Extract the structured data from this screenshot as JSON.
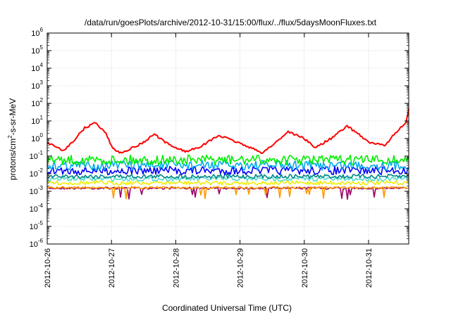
{
  "chart_data": {
    "type": "line",
    "title": "/data/run/goesPlots/archive/2012-10-31/15:00/flux/../flux/5daysMoonFluxes.txt",
    "xlabel": "Coordinated Universal Time (UTC)",
    "ylabel": "protons/cm²-s-sr-MeV",
    "ylabel_parts": {
      "pre": "protons/cm",
      "sup": "2",
      "post": "-s-sr-MeV"
    },
    "y_scale": "log",
    "ylim": [
      1e-06,
      1000000.0
    ],
    "y_ticks": [
      {
        "base": "10",
        "exp": "-6",
        "value": 1e-06
      },
      {
        "base": "10",
        "exp": "-5",
        "value": 1e-05
      },
      {
        "base": "10",
        "exp": "-4",
        "value": 0.0001
      },
      {
        "base": "10",
        "exp": "-3",
        "value": 0.001
      },
      {
        "base": "10",
        "exp": "-2",
        "value": 0.01
      },
      {
        "base": "10",
        "exp": "-1",
        "value": 0.1
      },
      {
        "base": "10",
        "exp": "0",
        "value": 1
      },
      {
        "base": "10",
        "exp": "1",
        "value": 10
      },
      {
        "base": "10",
        "exp": "2",
        "value": 100
      },
      {
        "base": "10",
        "exp": "3",
        "value": 1000
      },
      {
        "base": "10",
        "exp": "4",
        "value": 10000
      },
      {
        "base": "10",
        "exp": "5",
        "value": 100000
      },
      {
        "base": "10",
        "exp": "6",
        "value": 1000000
      }
    ],
    "xlim": [
      "2012-10-26",
      "2012-10-31T15:00"
    ],
    "x_ticks": [
      "2012-10-26",
      "2012-10-27",
      "2012-10-28",
      "2012-10-29",
      "2012-10-30",
      "2012-10-31"
    ],
    "grid": true,
    "series": [
      {
        "color": "#ff0000",
        "x": [
          "2012-10-26T00:00",
          "2012-10-26T06:00",
          "2012-10-26T10:00",
          "2012-10-26T14:00",
          "2012-10-26T18:00",
          "2012-10-26T22:00",
          "2012-10-27T00:00",
          "2012-10-27T03:00",
          "2012-10-27T08:00",
          "2012-10-27T12:00",
          "2012-10-27T16:00",
          "2012-10-27T20:00",
          "2012-10-28T00:00",
          "2012-10-28T04:00",
          "2012-10-28T10:00",
          "2012-10-28T16:00",
          "2012-10-28T22:00",
          "2012-10-29T04:00",
          "2012-10-29T08:00",
          "2012-10-29T12:00",
          "2012-10-29T18:00",
          "2012-10-30T00:00",
          "2012-10-30T04:00",
          "2012-10-30T10:00",
          "2012-10-30T16:00",
          "2012-10-30T20:00",
          "2012-10-31T00:00",
          "2012-10-31T06:00",
          "2012-10-31T10:00",
          "2012-10-31T14:00",
          "2012-10-31T15:00"
        ],
        "values": [
          0.6,
          0.2,
          0.8,
          4,
          8,
          2,
          0.35,
          0.15,
          0.3,
          0.6,
          1.8,
          0.6,
          0.3,
          0.18,
          0.4,
          1.5,
          0.7,
          0.3,
          0.15,
          0.4,
          2.5,
          1.0,
          0.3,
          1.0,
          5,
          2,
          0.6,
          0.4,
          2,
          8,
          50
        ]
      },
      {
        "color": "#00ee00",
        "x": [
          "2012-10-26",
          "2012-10-31T15:00"
        ],
        "values": [
          0.06,
          0.06
        ]
      },
      {
        "color": "#00aaee",
        "x": [
          "2012-10-26",
          "2012-10-31T15:00"
        ],
        "values": [
          0.03,
          0.03
        ]
      },
      {
        "color": "#0000ff",
        "x": [
          "2012-10-26",
          "2012-10-31T15:00"
        ],
        "values": [
          0.015,
          0.015
        ]
      },
      {
        "color": "#008888",
        "x": [
          "2012-10-26",
          "2012-10-31T15:00"
        ],
        "values": [
          0.007,
          0.007
        ]
      },
      {
        "color": "#55ddcc",
        "x": [
          "2012-10-26",
          "2012-10-31T15:00"
        ],
        "values": [
          0.005,
          0.005
        ]
      },
      {
        "color": "#eeee00",
        "x": [
          "2012-10-26",
          "2012-10-31T15:00"
        ],
        "values": [
          0.003,
          0.003
        ]
      },
      {
        "color": "#ff9900",
        "x": [
          "2012-10-26",
          "2012-10-31T15:00"
        ],
        "values": [
          0.0016,
          0.0016
        ]
      },
      {
        "color": "#990066",
        "x": [
          "2012-10-26",
          "2012-10-31T15:00"
        ],
        "values": [
          0.0015,
          0.0015
        ]
      }
    ]
  }
}
